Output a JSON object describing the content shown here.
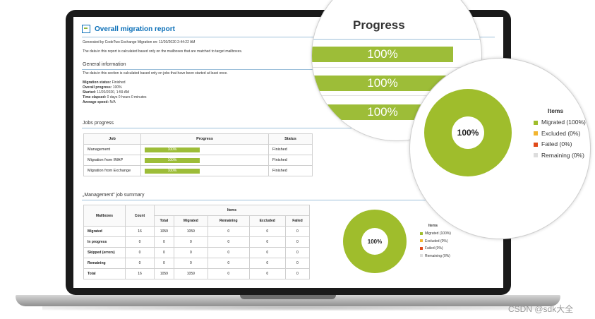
{
  "report": {
    "title": "Overall migration report",
    "generated": "Generated by CodeTwo Exchange Migration on: 11/20/2020 2:44:22 AM",
    "note": "The data in this report is calculated based only on the mailboxes that are matched to target mailboxes.",
    "general": {
      "heading": "General information",
      "note": "The data in this section is calculated based only on jobs that have been started at least once.",
      "items": [
        {
          "label": "Migration status:",
          "value": "Finished"
        },
        {
          "label": "Overall progress:",
          "value": "100%"
        },
        {
          "label": "Started:",
          "value": "11/20/2020, 1:59 AM"
        },
        {
          "label": "Time elapsed:",
          "value": "0 days 0 hours 0 minutes"
        },
        {
          "label": "Average speed:",
          "value": "N/A"
        }
      ]
    },
    "jobs": {
      "heading": "Jobs progress",
      "columns": [
        "Job",
        "Progress",
        "Status"
      ],
      "rows": [
        {
          "job": "Management",
          "progress": "100%",
          "status": "Finished"
        },
        {
          "job": "Migration from IMAP",
          "progress": "100%",
          "status": "Finished"
        },
        {
          "job": "Migration from Exchange",
          "progress": "100%",
          "status": "Finished"
        }
      ]
    },
    "summary": {
      "heading": "„Management” job summary",
      "h_mailboxes": "Mailboxes",
      "h_count": "Count",
      "h_items": "Items",
      "sub_columns": [
        "Total",
        "Migrated",
        "Remaining",
        "Excluded",
        "Failed"
      ],
      "rows": [
        {
          "name": "Migrated",
          "cells": [
            "16",
            "1059",
            "1059",
            "0",
            "0",
            "0"
          ]
        },
        {
          "name": "In progress",
          "cells": [
            "0",
            "0",
            "0",
            "0",
            "0",
            "0"
          ]
        },
        {
          "name": "Skipped (errors)",
          "cells": [
            "0",
            "0",
            "0",
            "0",
            "0",
            "0"
          ]
        },
        {
          "name": "Remaining",
          "cells": [
            "0",
            "0",
            "0",
            "0",
            "0",
            "0"
          ]
        },
        {
          "name": "Total",
          "cells": [
            "16",
            "1059",
            "1059",
            "0",
            "0",
            "0"
          ]
        }
      ]
    },
    "donut": {
      "center": "100%",
      "legend_title": "Items",
      "legend": [
        {
          "label": "Migrated (100%)",
          "color": "#9fbd2c"
        },
        {
          "label": "Excluded (0%)",
          "color": "#f2b531"
        },
        {
          "label": "Failed (0%)",
          "color": "#e04a1a"
        },
        {
          "label": "Remaining (0%)",
          "color": "#dddddd"
        }
      ]
    }
  },
  "zoom_progress": {
    "title": "Progress",
    "bars": [
      "100%",
      "100%",
      "100%"
    ]
  },
  "watermark": "CSDN @sdk大全",
  "chart_data": {
    "type": "pie",
    "title": "Items",
    "categories": [
      "Migrated",
      "Excluded",
      "Failed",
      "Remaining"
    ],
    "values": [
      100,
      0,
      0,
      0
    ],
    "center_label": "100%"
  }
}
